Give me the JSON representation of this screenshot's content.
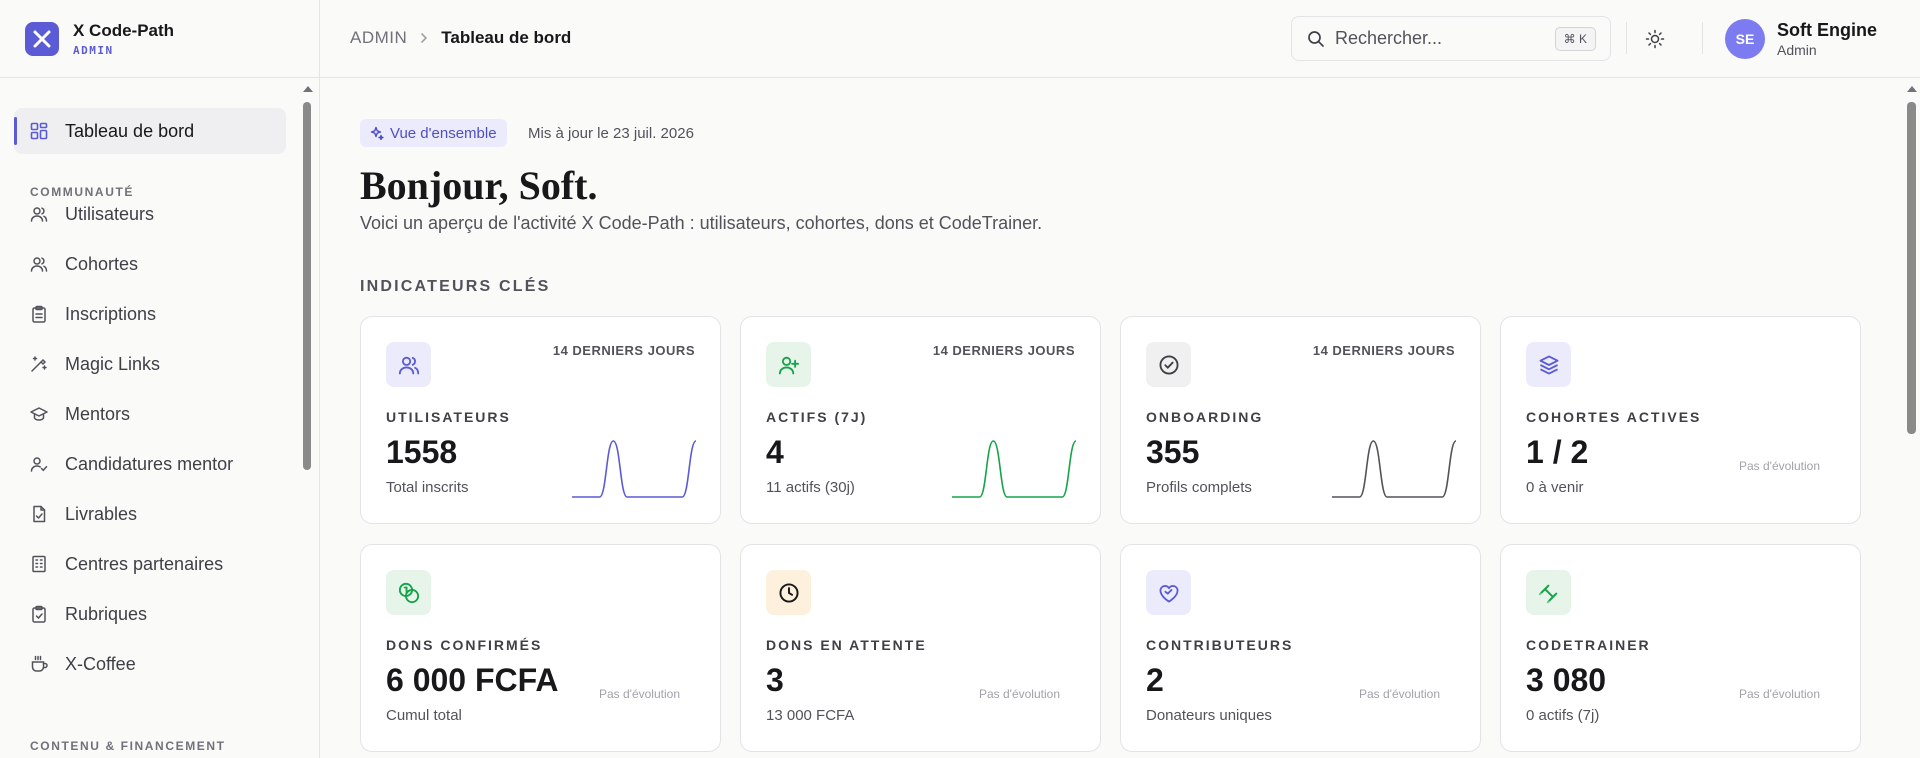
{
  "brand": {
    "name": "X Code-Path",
    "subtitle": "ADMIN"
  },
  "sidebar": {
    "active": {
      "label": "Tableau de bord",
      "icon": "dashboard-icon"
    },
    "sections": [
      {
        "title": "COMMUNAUTÉ",
        "items": [
          {
            "label": "Utilisateurs",
            "icon": "users-icon"
          },
          {
            "label": "Cohortes",
            "icon": "cohorts-icon"
          },
          {
            "label": "Inscriptions",
            "icon": "clipboard-icon"
          },
          {
            "label": "Magic Links",
            "icon": "magic-wand-icon"
          },
          {
            "label": "Mentors",
            "icon": "graduation-cap-icon"
          },
          {
            "label": "Candidatures mentor",
            "icon": "user-check-icon"
          },
          {
            "label": "Livrables",
            "icon": "file-check-icon"
          },
          {
            "label": "Centres partenaires",
            "icon": "building-icon"
          },
          {
            "label": "Rubriques",
            "icon": "clipboard-check-icon"
          },
          {
            "label": "X-Coffee",
            "icon": "coffee-icon"
          }
        ]
      },
      {
        "title": "CONTENU & FINANCEMENT",
        "items": []
      }
    ]
  },
  "header": {
    "breadcrumb": {
      "root": "ADMIN",
      "current": "Tableau de bord"
    },
    "search": {
      "placeholder": "Rechercher...",
      "shortcut": "⌘ K"
    },
    "user": {
      "initials": "SE",
      "name": "Soft Engine",
      "role": "Admin"
    }
  },
  "main": {
    "badge": "Vue d'ensemble",
    "updated": "Mis à jour le 23 juil. 2026",
    "greeting": "Bonjour, Soft.",
    "intro": "Voici un aperçu de l'activité X Code-Path : utilisateurs, cohortes, dons et CodeTrainer.",
    "section_title": "INDICATEURS CLÉS",
    "cards": [
      {
        "label": "UTILISATEURS",
        "value": "1558",
        "sub": "Total inscrits",
        "period": "14 DERNIERS JOURS",
        "icon": "users-icon",
        "accent": "#5b5bd6",
        "icon_bg": "#ebebfb",
        "spark": [
          0,
          0,
          0,
          1,
          0,
          0,
          0,
          0,
          0,
          1
        ]
      },
      {
        "label": "ACTIFS (7J)",
        "value": "4",
        "sub": "11 actifs (30j)",
        "period": "14 DERNIERS JOURS",
        "icon": "user-plus-icon",
        "accent": "#16a34a",
        "icon_bg": "#e6f4ea",
        "spark": [
          0,
          0,
          0,
          1,
          0,
          0,
          0,
          0,
          0,
          1
        ]
      },
      {
        "label": "ONBOARDING",
        "value": "355",
        "sub": "Profils complets",
        "period": "14 DERNIERS JOURS",
        "icon": "check-circle-icon",
        "accent": "#52525b",
        "icon_bg": "#f0f0f1",
        "spark": [
          0,
          0,
          0,
          1,
          0,
          0,
          0,
          0,
          0,
          1
        ]
      },
      {
        "label": "COHORTES ACTIVES",
        "value": "1 / 2",
        "sub": "0 à venir",
        "trend": "Pas d'évolution",
        "icon": "layers-icon",
        "accent": "#5b5bd6",
        "icon_bg": "#ebebfb"
      },
      {
        "label": "DONS CONFIRMÉS",
        "value": "6 000 FCFA",
        "sub": "Cumul total",
        "trend": "Pas d'évolution",
        "icon": "coins-icon",
        "accent": "#16a34a",
        "icon_bg": "#e6f4ea"
      },
      {
        "label": "DONS EN ATTENTE",
        "value": "3",
        "sub": "13 000 FCFA",
        "trend": "Pas d'évolution",
        "icon": "clock-icon",
        "accent": "#18181b",
        "icon_bg": "#fdf0dd"
      },
      {
        "label": "CONTRIBUTEURS",
        "value": "2",
        "sub": "Donateurs uniques",
        "trend": "Pas d'évolution",
        "icon": "heart-handshake-icon",
        "accent": "#5b5bd6",
        "icon_bg": "#ebebfb"
      },
      {
        "label": "CODETRAINER",
        "value": "3 080",
        "sub": "0 actifs (7j)",
        "trend": "Pas d'évolution",
        "icon": "dumbbell-icon",
        "accent": "#16a34a",
        "icon_bg": "#e6f4ea"
      }
    ]
  }
}
